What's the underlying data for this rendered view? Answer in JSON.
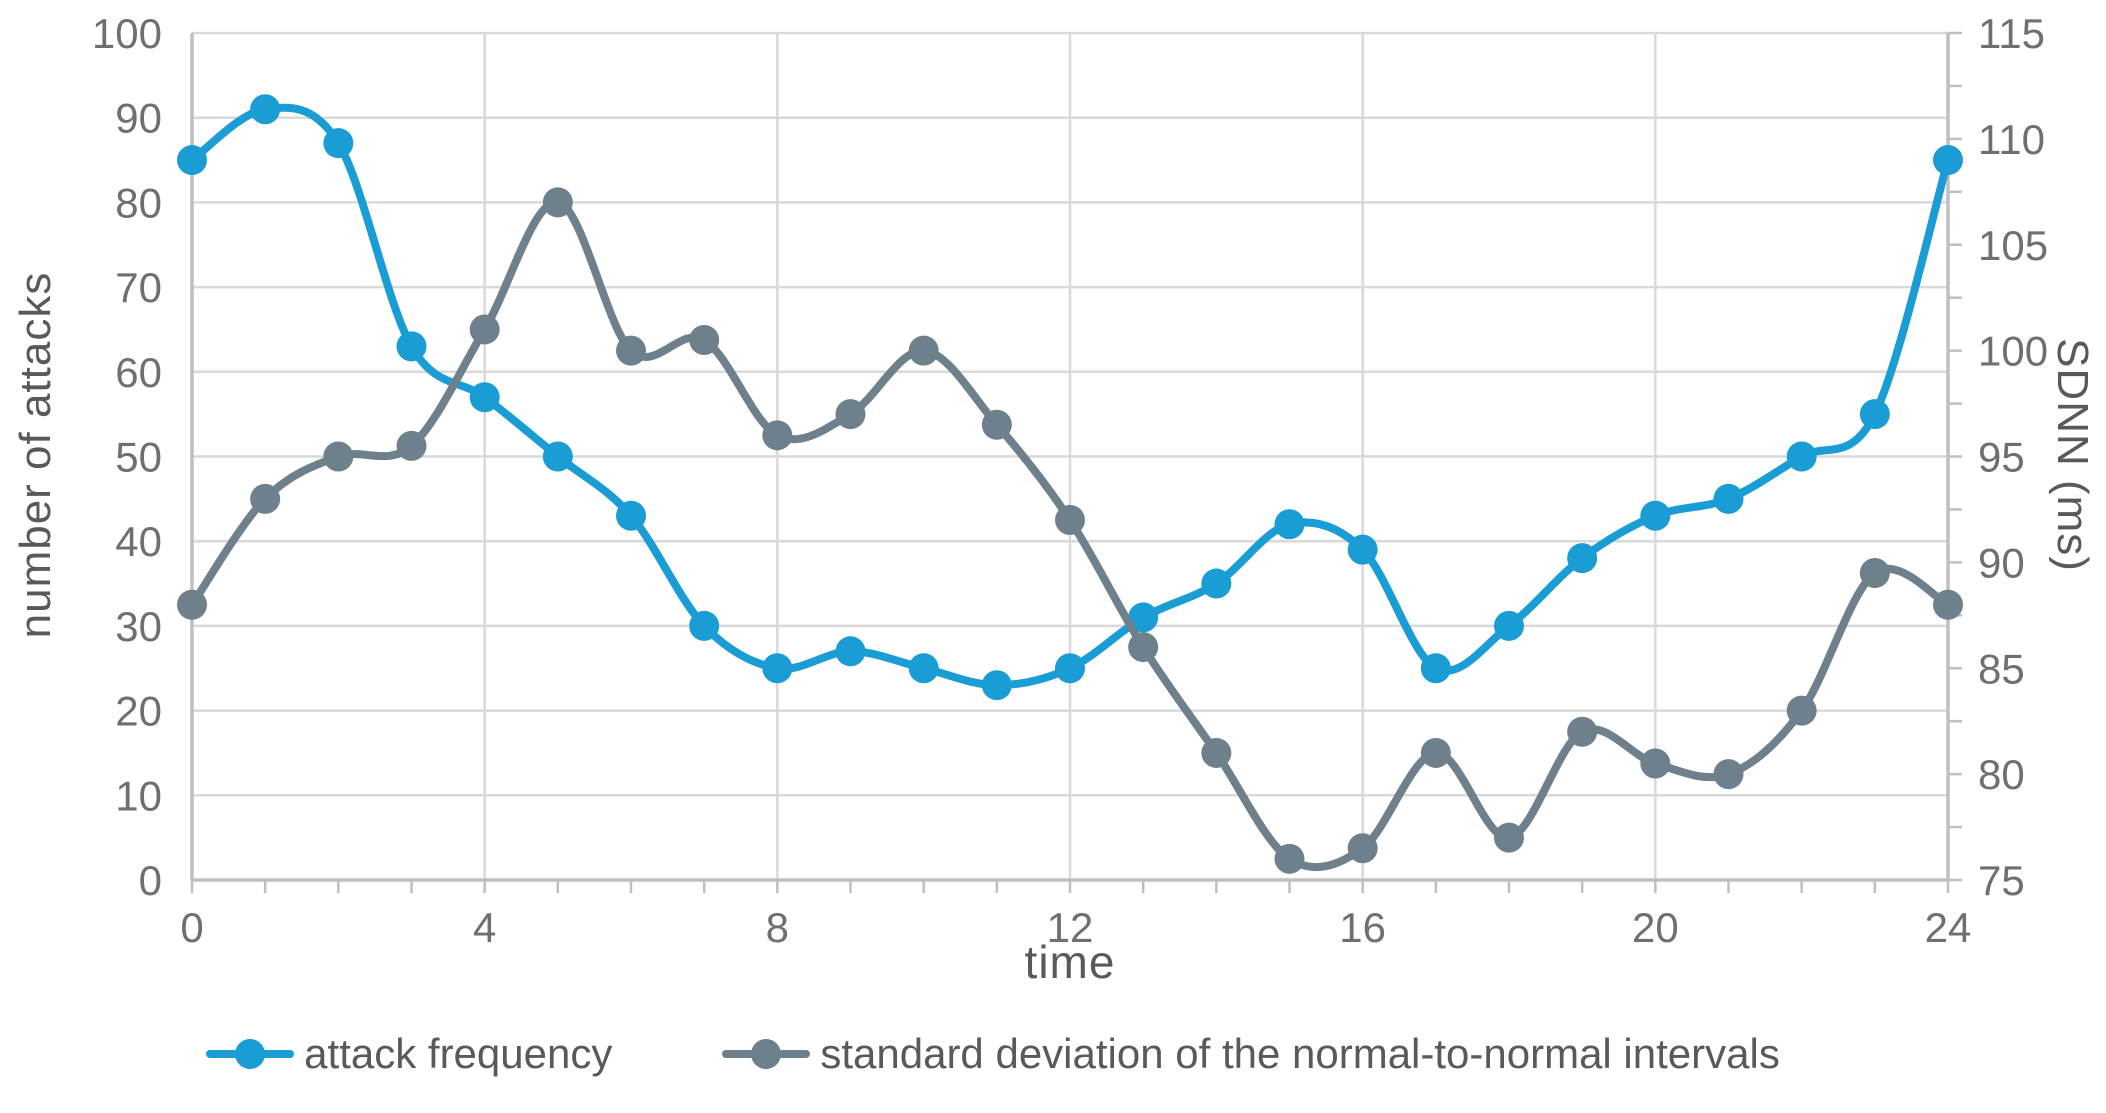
{
  "chart_data": {
    "type": "line",
    "x": [
      0,
      1,
      2,
      3,
      4,
      5,
      6,
      7,
      8,
      9,
      10,
      11,
      12,
      13,
      14,
      15,
      16,
      17,
      18,
      19,
      20,
      21,
      22,
      23,
      24
    ],
    "series": [
      {
        "name": "attack frequency",
        "axis": "left",
        "color": "#1a9cd4",
        "values": [
          85,
          91,
          87,
          63,
          57,
          50,
          43,
          30,
          25,
          27,
          25,
          23,
          25,
          31,
          35,
          42,
          39,
          25,
          30,
          38,
          43,
          45,
          50,
          55,
          85
        ]
      },
      {
        "name": "standard deviation of the normal-to-normal intervals",
        "axis": "right",
        "color": "#6e808b",
        "values": [
          88,
          93,
          95,
          95.5,
          101,
          107,
          100,
          100.5,
          96,
          97,
          100,
          96.5,
          92,
          86,
          81,
          76,
          76.5,
          81,
          77,
          82,
          80.5,
          80,
          83,
          89.5,
          88
        ]
      }
    ],
    "left_axis": {
      "label": "number of attacks",
      "min": 0,
      "max": 100,
      "ticks": [
        0,
        10,
        20,
        30,
        40,
        50,
        60,
        70,
        80,
        90,
        100
      ]
    },
    "right_axis": {
      "label": "SDNN (ms)",
      "min": 75,
      "max": 115,
      "ticks": [
        75,
        80,
        85,
        90,
        95,
        100,
        105,
        110,
        115
      ],
      "minor_tick_step": 2.5
    },
    "x_axis": {
      "label": "time",
      "min": 0,
      "max": 24,
      "tick_labels": [
        0,
        4,
        8,
        12,
        16,
        20,
        24
      ],
      "minor_tick_step": 1
    },
    "grid": true,
    "legend_position": "bottom",
    "style": {
      "grid_color": "#d9d9d9",
      "axis_line_color": "#bfbfbf",
      "tick_label_color": "#6f6f6f",
      "tick_label_size": 42,
      "line_width": 8,
      "marker_radius": 15
    }
  }
}
